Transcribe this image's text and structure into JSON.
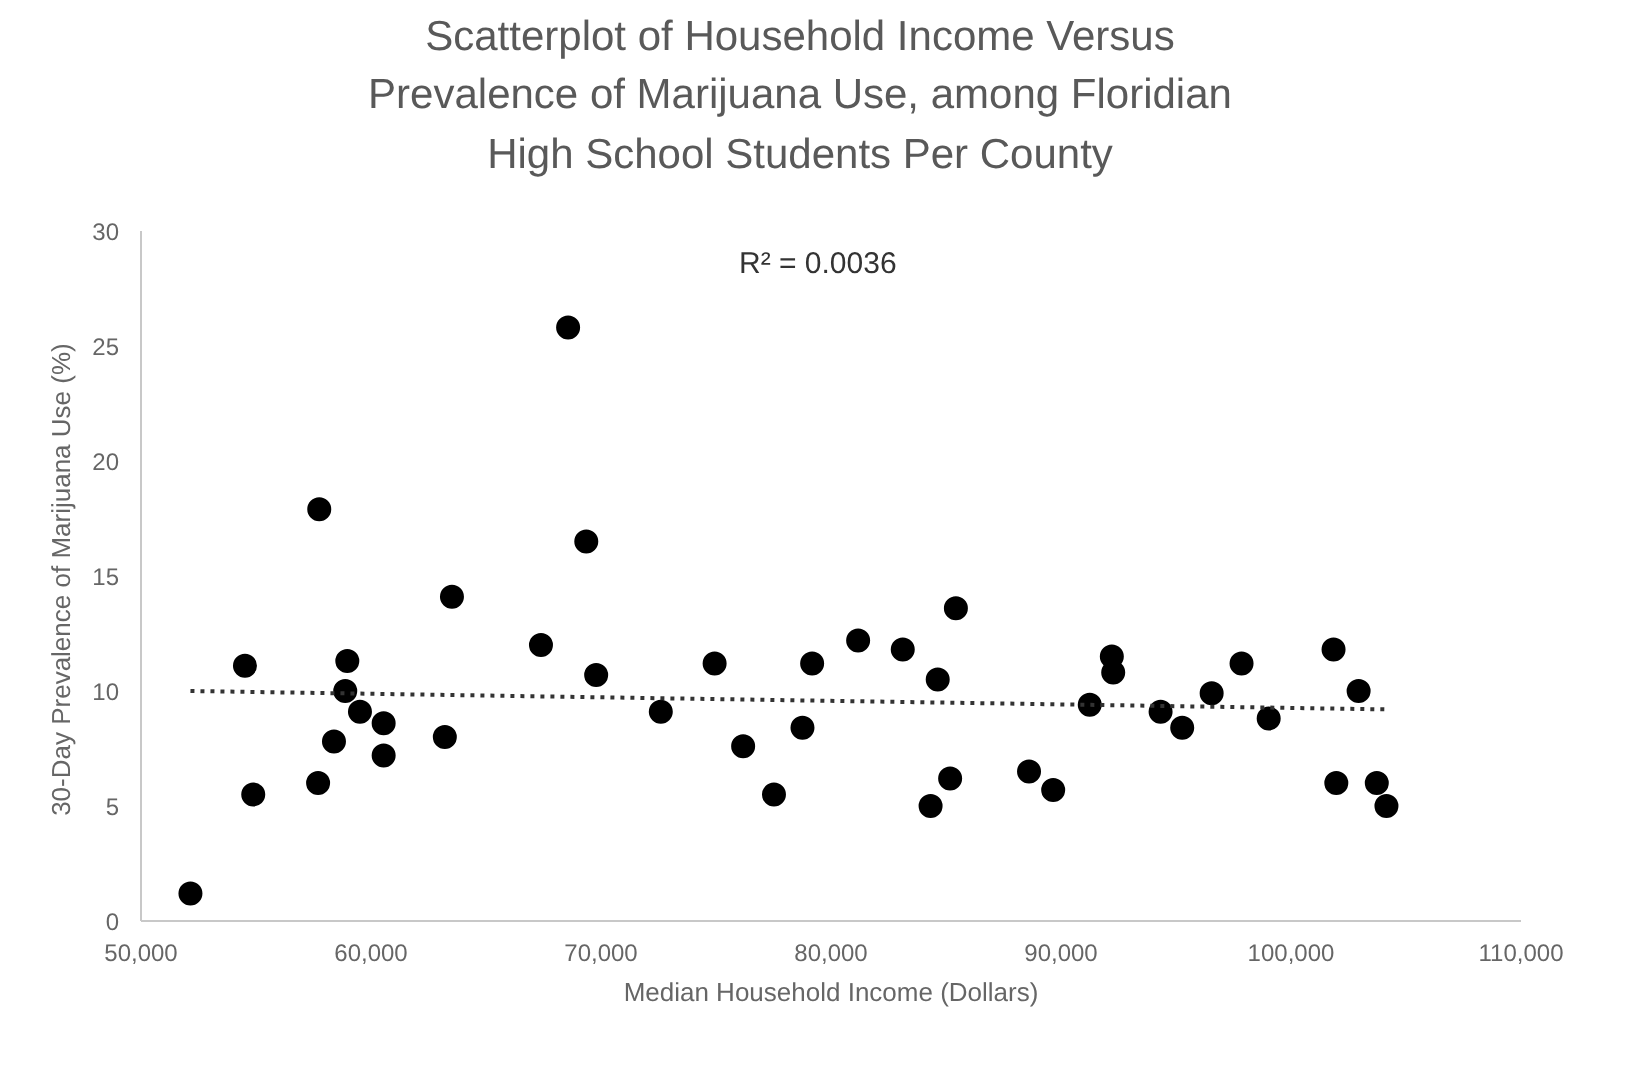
{
  "chart_data": {
    "type": "scatter",
    "title": "Scatterplot of Household Income Versus Prevalence of Marijuana Use, among Floridian High School Students Per County",
    "xlabel": "Median Household Income (Dollars)",
    "ylabel": "30-Day Prevalence of  Marijuana Use (%)",
    "annotations": [
      "R² = 0.0036"
    ],
    "xlim": [
      50000,
      110000
    ],
    "xticks": [
      {
        "value": 50000,
        "label": "50,000"
      },
      {
        "value": 60000,
        "label": "60,000"
      },
      {
        "value": 70000,
        "label": "70,000"
      },
      {
        "value": 80000,
        "label": "80,000"
      },
      {
        "value": 90000,
        "label": "90,000"
      },
      {
        "value": 100000,
        "label": "100,000"
      },
      {
        "value": 110000,
        "label": "110,000"
      }
    ],
    "ylim": [
      0,
      30
    ],
    "yticks": [
      0,
      5,
      10,
      15,
      20,
      25,
      30
    ],
    "grid": false,
    "series": [
      {
        "color": "#000000",
        "marker": "circle",
        "x": [
          52150,
          54520,
          54880,
          57750,
          57700,
          58970,
          58880,
          58390,
          59520,
          60550,
          60550,
          63520,
          63210,
          67390,
          68570,
          69360,
          69790,
          72600,
          74940,
          76180,
          77520,
          78760,
          79180,
          81180,
          83120,
          84640,
          85430,
          85180,
          84330,
          88610,
          89660,
          91250,
          92210,
          92270,
          94330,
          95270,
          96550,
          97850,
          99030,
          101850,
          102940,
          101970,
          103730,
          104150
        ],
        "values": [
          1.2,
          11.1,
          5.5,
          17.9,
          6.0,
          11.3,
          10.0,
          7.8,
          9.1,
          8.6,
          7.2,
          14.1,
          8.0,
          12.0,
          25.8,
          16.5,
          10.7,
          9.1,
          11.2,
          7.6,
          5.5,
          8.4,
          11.2,
          12.2,
          11.8,
          10.5,
          13.6,
          6.2,
          5.0,
          6.5,
          5.7,
          9.4,
          11.5,
          10.8,
          9.1,
          8.4,
          9.9,
          11.2,
          8.8,
          11.8,
          10.0,
          6.0,
          6.0,
          5.0
        ]
      },
      {
        "type": "line",
        "color": "#333333",
        "line_style": "dotted",
        "x": [
          52150,
          104150
        ],
        "values": [
          10.0,
          9.2
        ]
      }
    ]
  }
}
